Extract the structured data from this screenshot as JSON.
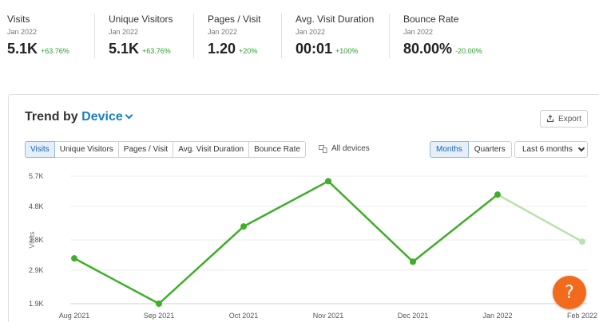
{
  "kpis": [
    {
      "label": "Visits",
      "period": "Jan 2022",
      "value": "5.1K",
      "change": "+63.76%"
    },
    {
      "label": "Unique Visitors",
      "period": "Jan 2022",
      "value": "5.1K",
      "change": "+63.76%"
    },
    {
      "label": "Pages / Visit",
      "period": "Jan 2022",
      "value": "1.20",
      "change": "+20%"
    },
    {
      "label": "Avg. Visit Duration",
      "period": "Jan 2022",
      "value": "00:01",
      "change": "+100%"
    },
    {
      "label": "Bounce Rate",
      "period": "Jan 2022",
      "value": "80.00%",
      "change": "-20.00%"
    }
  ],
  "card": {
    "title_prefix": "Trend by",
    "title_device": "Device",
    "export_label": "Export",
    "metric_tabs": [
      "Visits",
      "Unique Visitors",
      "Pages / Visit",
      "Avg. Visit Duration",
      "Bounce Rate"
    ],
    "active_metric": "Visits",
    "all_devices_label": "All devices",
    "period_tabs": [
      "Months",
      "Quarters"
    ],
    "active_period": "Months",
    "range_label": "Last 6 months"
  },
  "colors": {
    "line": "#3fae29",
    "line_projected": "#b9e3ae",
    "accent": "#1a7fc4",
    "help": "#f26b1d"
  },
  "chart_data": {
    "type": "line",
    "ylabel": "Visits",
    "y_ticks": [
      "1.9K",
      "2.9K",
      "3.8K",
      "4.8K",
      "5.7K"
    ],
    "y_tick_values": [
      1900,
      2900,
      3800,
      4800,
      5700
    ],
    "ylim": [
      1900,
      5700
    ],
    "categories": [
      "Aug 2021",
      "Sep 2021",
      "Oct 2021",
      "Nov 2021",
      "Dec 2021",
      "Jan 2022",
      "Feb 2022"
    ],
    "series": [
      {
        "values": [
          3250,
          1900,
          4200,
          5550,
          3150,
          5150,
          3750
        ],
        "projected_from_index": 5
      }
    ],
    "grid": true
  },
  "help_icon": "question-mark-icon"
}
